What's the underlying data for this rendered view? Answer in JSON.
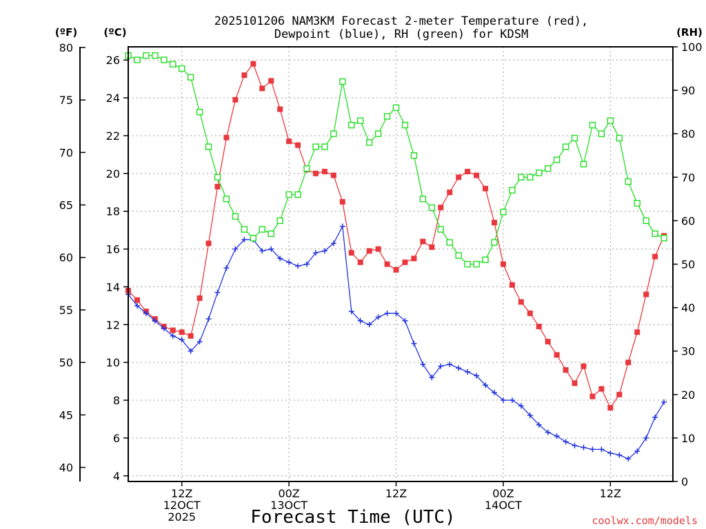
{
  "chart_data": {
    "type": "line",
    "title_line1": "2025101206 NAM3KM Forecast 2-meter Temperature (red),",
    "title_line2": "Dewpoint (blue), RH (green) for KDSM",
    "xlabel": "Forecast Time (UTC)",
    "credit": "coolwx.com/models",
    "units": {
      "fahrenheit": "(ºF)",
      "celsius": "(ºC)",
      "rh": "(RH)"
    },
    "x_range_hours": [
      0,
      61
    ],
    "celsius_axis": {
      "range": [
        3.7,
        26.7
      ],
      "ticks": [
        4,
        6,
        8,
        10,
        12,
        14,
        16,
        18,
        20,
        22,
        24,
        26
      ]
    },
    "fahrenheit_axis": {
      "ticks": [
        40,
        45,
        50,
        55,
        60,
        65,
        70,
        75,
        80
      ]
    },
    "rh_axis": {
      "range": [
        0,
        100
      ],
      "ticks": [
        0,
        10,
        20,
        30,
        40,
        50,
        60,
        70,
        80,
        90,
        100
      ]
    },
    "x_ticks": [
      {
        "hour": 6,
        "lines": [
          "12Z",
          "12OCT",
          "2025"
        ]
      },
      {
        "hour": 18,
        "lines": [
          "00Z",
          "13OCT"
        ]
      },
      {
        "hour": 30,
        "lines": [
          "12Z"
        ]
      },
      {
        "hour": 42,
        "lines": [
          "00Z",
          "14OCT"
        ]
      },
      {
        "hour": 54,
        "lines": [
          "12Z"
        ]
      }
    ],
    "series": [
      {
        "name": "2-meter Temperature",
        "axis": "celsius",
        "color": "#e8383d",
        "marker": "filled-square",
        "values": [
          13.8,
          13.3,
          12.7,
          12.3,
          11.9,
          11.7,
          11.6,
          11.4,
          13.4,
          16.3,
          19.3,
          21.9,
          23.9,
          25.2,
          25.8,
          24.5,
          24.9,
          23.4,
          21.7,
          21.5,
          20.2,
          20.0,
          20.1,
          19.9,
          18.5,
          15.8,
          15.3,
          15.9,
          16.0,
          15.2,
          14.9,
          15.3,
          15.5,
          16.4,
          16.1,
          18.2,
          19.0,
          19.8,
          20.1,
          19.9,
          19.2,
          17.4,
          15.2,
          14.1,
          13.2,
          12.6,
          11.9,
          11.1,
          10.4,
          9.6,
          8.9,
          9.8,
          8.2,
          8.6,
          7.6,
          8.3,
          10.0,
          11.6,
          13.6,
          15.6,
          16.7
        ]
      },
      {
        "name": "Dewpoint",
        "axis": "celsius",
        "color": "#2233dd",
        "marker": "plus",
        "values": [
          13.6,
          13.0,
          12.6,
          12.2,
          11.8,
          11.4,
          11.2,
          10.6,
          11.1,
          12.3,
          13.7,
          15.0,
          16.0,
          16.5,
          16.5,
          15.9,
          16.0,
          15.5,
          15.3,
          15.1,
          15.2,
          15.8,
          15.9,
          16.3,
          17.2,
          12.7,
          12.2,
          12.0,
          12.4,
          12.6,
          12.6,
          12.2,
          11.0,
          9.9,
          9.2,
          9.8,
          9.9,
          9.7,
          9.5,
          9.3,
          8.8,
          8.4,
          8.0,
          8.0,
          7.7,
          7.2,
          6.7,
          6.3,
          6.1,
          5.8,
          5.6,
          5.5,
          5.4,
          5.4,
          5.2,
          5.1,
          4.9,
          5.3,
          6.0,
          7.1,
          7.9
        ]
      },
      {
        "name": "RH",
        "axis": "rh",
        "color": "#22dd22",
        "marker": "open-square",
        "values": [
          98,
          97,
          98,
          98,
          97,
          96,
          95,
          93,
          85,
          77,
          70,
          65,
          61,
          58,
          56,
          58,
          57,
          60,
          66,
          66,
          72,
          77,
          77,
          80,
          92,
          82,
          83,
          78,
          80,
          84,
          86,
          82,
          75,
          65,
          63,
          58,
          55,
          52,
          50,
          50,
          51,
          55,
          62,
          67,
          70,
          70,
          71,
          72,
          74,
          77,
          79,
          73,
          82,
          80,
          83,
          79,
          69,
          64,
          60,
          57,
          56
        ]
      }
    ]
  }
}
